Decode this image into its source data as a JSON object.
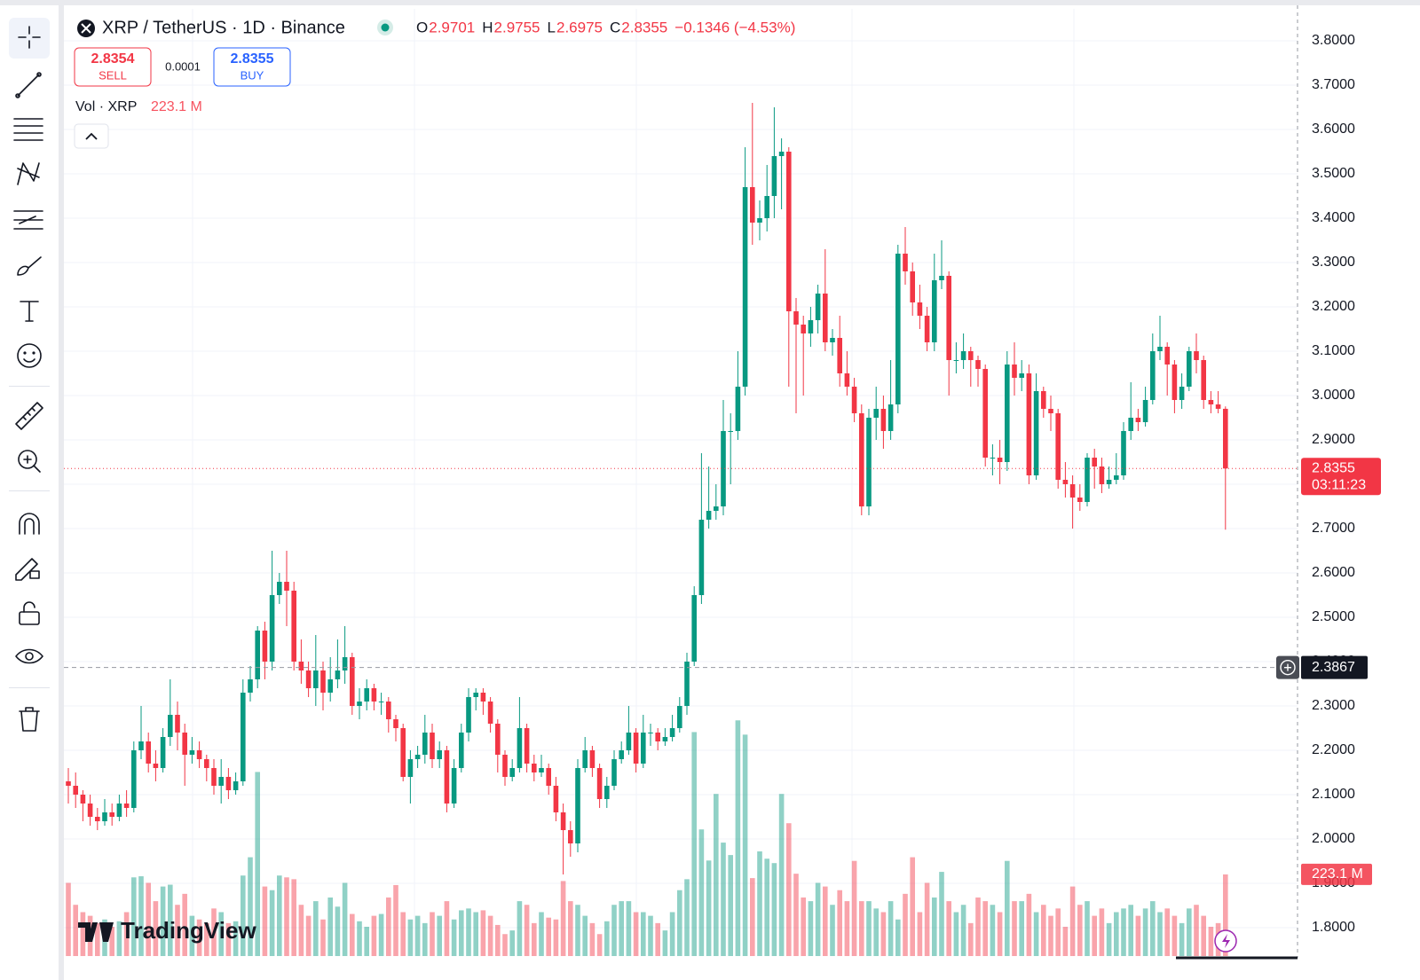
{
  "header": {
    "symbol": "XRP / TetherUS · 1D · Binance",
    "ohlc": [
      {
        "key": "O",
        "value": "2.9701"
      },
      {
        "key": "H",
        "value": "2.9755"
      },
      {
        "key": "L",
        "value": "2.6975"
      },
      {
        "key": "C",
        "value": "2.8355"
      }
    ],
    "change": "−0.1346 (−4.53%)"
  },
  "trade": {
    "sell_price": "2.8354",
    "sell": "SELL",
    "spread": "0.0001",
    "buy_price": "2.8355",
    "buy": "BUY"
  },
  "volume_legend": {
    "label": "Vol · XRP",
    "value": "223.1 M"
  },
  "logo": "TradingView",
  "chart_data": {
    "type": "candlestick",
    "up_color": "#089981",
    "down_color": "#f23645",
    "ylim": [
      1.736,
      3.872
    ],
    "yticks": [
      {
        "value": 1.8,
        "label": "1.8000"
      },
      {
        "value": 1.9,
        "label": "1.9000"
      },
      {
        "value": 2.0,
        "label": "2.0000"
      },
      {
        "value": 2.1,
        "label": "2.1000"
      },
      {
        "value": 2.2,
        "label": "2.2000"
      },
      {
        "value": 2.3,
        "label": "2.3000"
      },
      {
        "value": 2.4,
        "label": "2.4000"
      },
      {
        "value": 2.5,
        "label": "2.5000"
      },
      {
        "value": 2.6,
        "label": "2.6000"
      },
      {
        "value": 2.7,
        "label": "2.7000"
      },
      {
        "value": 2.8,
        "label": "2.8000"
      },
      {
        "value": 2.9,
        "label": "2.9000"
      },
      {
        "value": 3.0,
        "label": "3.0000"
      },
      {
        "value": 3.1,
        "label": "3.1000"
      },
      {
        "value": 3.2,
        "label": "3.2000"
      },
      {
        "value": 3.3,
        "label": "3.3000"
      },
      {
        "value": 3.4,
        "label": "3.4000"
      },
      {
        "value": 3.5,
        "label": "3.5000"
      },
      {
        "value": 3.6,
        "label": "3.6000"
      },
      {
        "value": 3.7,
        "label": "3.7000"
      },
      {
        "value": 3.8,
        "label": "3.8000"
      }
    ],
    "volume_lim": [
      0,
      727
    ],
    "last_price": 2.8355,
    "countdown": "03:11:23",
    "crosshair_price": 2.3867,
    "open": [
      2.13,
      2.12,
      2.1,
      2.08,
      2.05,
      2.04,
      2.06,
      2.05,
      2.08,
      2.07,
      2.2,
      2.22,
      2.17,
      2.16,
      2.23,
      2.28,
      2.24,
      2.19,
      2.2,
      2.18,
      2.16,
      2.12,
      2.14,
      2.11,
      2.13,
      2.33,
      2.36,
      2.47,
      2.4,
      2.55,
      2.58,
      2.56,
      2.4,
      2.38,
      2.34,
      2.38,
      2.33,
      2.36,
      2.38,
      2.41,
      2.3,
      2.31,
      2.34,
      2.31,
      2.31,
      2.27,
      2.25,
      2.14,
      2.18,
      2.19,
      2.24,
      2.18,
      2.2,
      2.08,
      2.16,
      2.24,
      2.32,
      2.33,
      2.31,
      2.26,
      2.19,
      2.14,
      2.16,
      2.25,
      2.17,
      2.15,
      2.16,
      2.12,
      2.06,
      2.02,
      1.99,
      2.16,
      2.2,
      2.16,
      2.09,
      2.12,
      2.18,
      2.2,
      2.24,
      2.17,
      2.24,
      2.24,
      2.22,
      2.23,
      2.25,
      2.3,
      2.4,
      2.55,
      2.72,
      2.74,
      2.75,
      2.92,
      2.92,
      3.02,
      3.47,
      3.39,
      3.4,
      3.45,
      3.54,
      3.55,
      3.19,
      3.16,
      3.14,
      3.17,
      3.23,
      3.12,
      3.13,
      3.05,
      3.02,
      2.96,
      2.75,
      2.95,
      2.97,
      2.92,
      2.98,
      3.32,
      3.28,
      3.21,
      3.18,
      3.12,
      3.26,
      3.27,
      3.08,
      3.08,
      3.1,
      3.08,
      3.06,
      2.86,
      2.86,
      2.85,
      3.07,
      3.04,
      3.05,
      2.82,
      3.01,
      2.97,
      2.96,
      2.81,
      2.8,
      2.77,
      2.76,
      2.86,
      2.84,
      2.8,
      2.81,
      2.82,
      2.92,
      2.95,
      2.94,
      2.99,
      3.1,
      3.11,
      3.07,
      2.99,
      3.02,
      3.1,
      3.08,
      2.99,
      2.98,
      2.9701
    ],
    "high": [
      2.16,
      2.15,
      2.11,
      2.1,
      2.07,
      2.09,
      2.08,
      2.1,
      2.11,
      2.22,
      2.3,
      2.24,
      2.2,
      2.25,
      2.36,
      2.31,
      2.26,
      2.23,
      2.22,
      2.19,
      2.18,
      2.18,
      2.16,
      2.15,
      2.36,
      2.39,
      2.48,
      2.49,
      2.65,
      2.6,
      2.65,
      2.58,
      2.45,
      2.4,
      2.46,
      2.4,
      2.41,
      2.45,
      2.48,
      2.42,
      2.34,
      2.36,
      2.35,
      2.33,
      2.32,
      2.28,
      2.26,
      2.2,
      2.21,
      2.28,
      2.26,
      2.22,
      2.21,
      2.18,
      2.26,
      2.34,
      2.34,
      2.34,
      2.32,
      2.27,
      2.2,
      2.18,
      2.32,
      2.26,
      2.19,
      2.19,
      2.17,
      2.14,
      2.08,
      2.04,
      2.18,
      2.23,
      2.21,
      2.17,
      2.14,
      2.2,
      2.22,
      2.3,
      2.25,
      2.28,
      2.26,
      2.25,
      2.25,
      2.28,
      2.32,
      2.42,
      2.57,
      2.87,
      2.84,
      2.8,
      2.99,
      2.96,
      3.1,
      3.56,
      3.66,
      3.44,
      3.52,
      3.65,
      3.58,
      3.56,
      3.22,
      3.18,
      3.2,
      3.25,
      3.33,
      3.15,
      3.18,
      3.1,
      3.04,
      2.98,
      2.97,
      3.02,
      3.0,
      3.08,
      3.34,
      3.38,
      3.3,
      3.25,
      3.2,
      3.32,
      3.35,
      3.28,
      3.12,
      3.14,
      3.11,
      3.09,
      3.07,
      2.89,
      2.9,
      3.1,
      3.12,
      3.08,
      3.07,
      3.05,
      3.02,
      3.0,
      2.97,
      2.85,
      2.82,
      2.8,
      2.87,
      2.88,
      2.86,
      2.84,
      2.87,
      2.94,
      3.03,
      2.97,
      3.02,
      3.14,
      3.18,
      3.12,
      3.08,
      3.05,
      3.11,
      3.14,
      3.09,
      3.01,
      3.01,
      2.9755
    ],
    "low": [
      2.08,
      2.07,
      2.04,
      2.03,
      2.02,
      2.03,
      2.03,
      2.04,
      2.05,
      2.06,
      2.18,
      2.15,
      2.13,
      2.15,
      2.21,
      2.2,
      2.12,
      2.17,
      2.16,
      2.13,
      2.1,
      2.08,
      2.09,
      2.1,
      2.12,
      2.31,
      2.34,
      2.36,
      2.38,
      2.53,
      2.48,
      2.38,
      2.35,
      2.32,
      2.3,
      2.29,
      2.31,
      2.34,
      2.35,
      2.28,
      2.27,
      2.29,
      2.29,
      2.28,
      2.24,
      2.22,
      2.13,
      2.08,
      2.16,
      2.17,
      2.16,
      2.16,
      2.06,
      2.07,
      2.15,
      2.22,
      2.29,
      2.28,
      2.24,
      2.15,
      2.12,
      2.13,
      2.15,
      2.15,
      2.13,
      2.14,
      2.1,
      2.04,
      1.92,
      1.96,
      1.97,
      2.15,
      2.14,
      2.07,
      2.07,
      2.11,
      2.17,
      2.19,
      2.15,
      2.16,
      2.21,
      2.2,
      2.21,
      2.22,
      2.24,
      2.28,
      2.39,
      2.53,
      2.7,
      2.72,
      2.73,
      2.8,
      2.9,
      3.0,
      3.34,
      3.35,
      3.37,
      3.4,
      3.42,
      3.02,
      2.96,
      3.0,
      3.11,
      3.14,
      3.1,
      3.09,
      3.02,
      3.0,
      2.94,
      2.73,
      2.73,
      2.9,
      2.88,
      2.9,
      2.96,
      3.25,
      3.18,
      3.15,
      3.1,
      3.1,
      3.24,
      3.0,
      3.05,
      3.06,
      3.02,
      3.02,
      2.84,
      2.82,
      2.8,
      2.83,
      3.0,
      3.01,
      2.8,
      2.81,
      2.95,
      2.92,
      2.79,
      2.77,
      2.7,
      2.74,
      2.75,
      2.79,
      2.78,
      2.79,
      2.8,
      2.81,
      2.9,
      2.92,
      2.93,
      2.98,
      3.08,
      3.0,
      2.96,
      2.97,
      3.01,
      3.05,
      2.97,
      2.96,
      2.96,
      2.6975
    ],
    "close": [
      2.12,
      2.1,
      2.08,
      2.05,
      2.04,
      2.06,
      2.05,
      2.08,
      2.07,
      2.2,
      2.22,
      2.17,
      2.16,
      2.23,
      2.28,
      2.24,
      2.19,
      2.2,
      2.18,
      2.16,
      2.12,
      2.14,
      2.11,
      2.13,
      2.33,
      2.36,
      2.47,
      2.4,
      2.55,
      2.58,
      2.56,
      2.4,
      2.38,
      2.34,
      2.38,
      2.33,
      2.36,
      2.38,
      2.41,
      2.3,
      2.31,
      2.34,
      2.31,
      2.31,
      2.27,
      2.25,
      2.14,
      2.18,
      2.19,
      2.24,
      2.18,
      2.2,
      2.08,
      2.16,
      2.24,
      2.32,
      2.33,
      2.31,
      2.26,
      2.19,
      2.14,
      2.16,
      2.25,
      2.17,
      2.15,
      2.16,
      2.12,
      2.06,
      2.02,
      1.99,
      2.16,
      2.2,
      2.16,
      2.09,
      2.12,
      2.18,
      2.2,
      2.24,
      2.17,
      2.24,
      2.24,
      2.22,
      2.23,
      2.25,
      2.3,
      2.4,
      2.55,
      2.72,
      2.74,
      2.75,
      2.92,
      2.92,
      3.02,
      3.47,
      3.39,
      3.4,
      3.45,
      3.54,
      3.55,
      3.19,
      3.16,
      3.14,
      3.17,
      3.23,
      3.12,
      3.13,
      3.05,
      3.02,
      2.96,
      2.75,
      2.95,
      2.97,
      2.92,
      2.98,
      3.32,
      3.28,
      3.21,
      3.18,
      3.12,
      3.26,
      3.27,
      3.08,
      3.08,
      3.1,
      3.08,
      3.06,
      2.86,
      2.86,
      2.85,
      3.07,
      3.04,
      3.05,
      2.82,
      3.01,
      2.97,
      2.96,
      2.81,
      2.8,
      2.77,
      2.76,
      2.86,
      2.84,
      2.8,
      2.81,
      2.82,
      2.92,
      2.95,
      2.94,
      2.99,
      3.1,
      3.11,
      3.07,
      2.99,
      3.02,
      3.1,
      3.08,
      2.99,
      2.98,
      2.9701,
      2.8355
    ],
    "volume": [
      200,
      140,
      120,
      110,
      90,
      100,
      80,
      95,
      120,
      215,
      218,
      200,
      150,
      190,
      195,
      140,
      170,
      110,
      100,
      90,
      130,
      120,
      90,
      95,
      220,
      270,
      503,
      190,
      180,
      220,
      215,
      210,
      140,
      110,
      150,
      100,
      160,
      135,
      200,
      115,
      95,
      80,
      110,
      115,
      160,
      194,
      120,
      100,
      110,
      90,
      120,
      110,
      150,
      100,
      125,
      130,
      120,
      125,
      110,
      85,
      60,
      70,
      150,
      140,
      90,
      120,
      105,
      100,
      205,
      150,
      140,
      110,
      90,
      60,
      95,
      140,
      150,
      150,
      120,
      120,
      110,
      90,
      70,
      120,
      180,
      210,
      612,
      346,
      261,
      443,
      310,
      276,
      644,
      605,
      213,
      286,
      266,
      254,
      443,
      363,
      225,
      160,
      150,
      200,
      190,
      140,
      180,
      150,
      260,
      150,
      150,
      130,
      120,
      150,
      100,
      170,
      270,
      120,
      200,
      160,
      230,
      150,
      120,
      140,
      90,
      160,
      150,
      140,
      120,
      260,
      150,
      150,
      170,
      120,
      140,
      110,
      130,
      80,
      190,
      140,
      150,
      110,
      130,
      90,
      120,
      130,
      140,
      110,
      130,
      150,
      120,
      130,
      110,
      90,
      130,
      140,
      110,
      80,
      90,
      223.1
    ]
  }
}
